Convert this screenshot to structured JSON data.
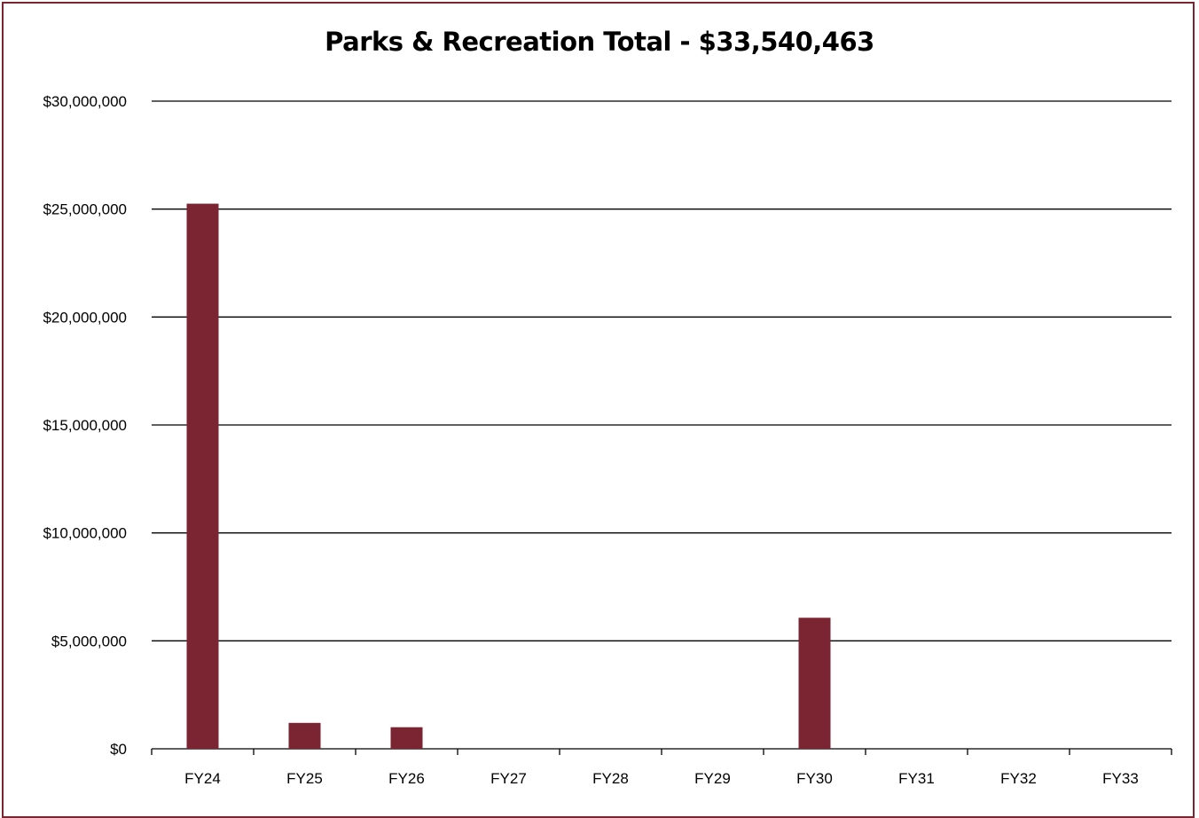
{
  "chart_data": {
    "type": "bar",
    "title": "Parks & Recreation Total - $33,540,463",
    "xlabel": "",
    "ylabel": "",
    "categories": [
      "FY24",
      "FY25",
      "FY26",
      "FY27",
      "FY28",
      "FY29",
      "FY30",
      "FY31",
      "FY32",
      "FY33"
    ],
    "values": [
      25250000,
      1200000,
      1000000,
      0,
      0,
      0,
      6070000,
      0,
      0,
      0
    ],
    "ylim": [
      0,
      30000000
    ],
    "yticks": [
      0,
      5000000,
      10000000,
      15000000,
      20000000,
      25000000,
      30000000
    ],
    "ytick_labels": [
      "$0",
      "$5,000,000",
      "$10,000,000",
      "$15,000,000",
      "$20,000,000",
      "$25,000,000",
      "$30,000,000"
    ],
    "grid": true,
    "legend": "none",
    "bar_color": "#7a2531",
    "border_color": "#7a2531"
  }
}
